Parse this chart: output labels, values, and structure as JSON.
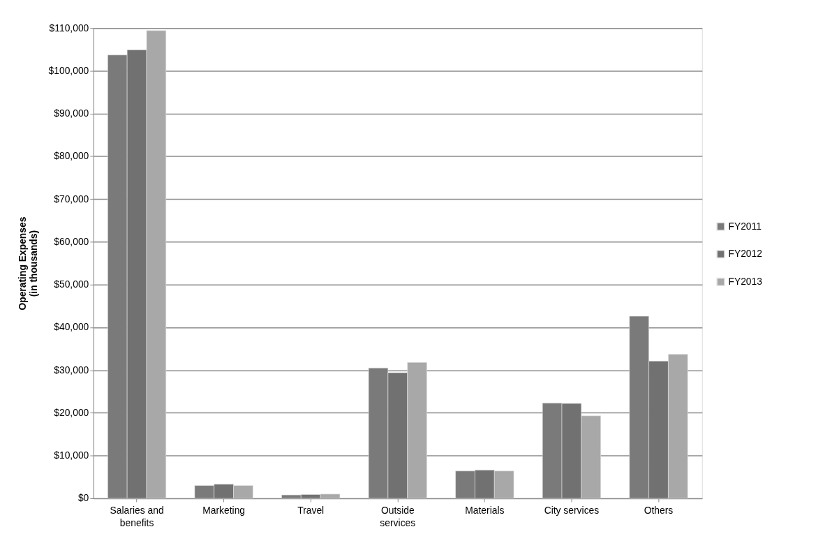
{
  "chart_data": {
    "type": "bar",
    "ylabel": "Operating  Expenses\n(in thousands)",
    "categories": [
      "Salaries and benefits",
      "Marketing",
      "Travel",
      "Outside services",
      "Materials",
      "City services",
      "Others"
    ],
    "series": [
      {
        "name": "FY2011",
        "color": "#7a7a7a",
        "values": [
          103700,
          3000,
          800,
          30500,
          6400,
          22300,
          42600
        ]
      },
      {
        "name": "FY2012",
        "color": "#717171",
        "values": [
          104900,
          3300,
          900,
          29400,
          6600,
          22200,
          32100
        ]
      },
      {
        "name": "FY2013",
        "color": "#a8a8a8",
        "values": [
          109400,
          3000,
          1000,
          31800,
          6400,
          19300,
          33700
        ]
      }
    ],
    "ylim": [
      0,
      110000
    ],
    "yticks": [
      {
        "value": 0,
        "label": "$0"
      },
      {
        "value": 10000,
        "label": "$10,000"
      },
      {
        "value": 20000,
        "label": "$20,000"
      },
      {
        "value": 30000,
        "label": "$30,000"
      },
      {
        "value": 40000,
        "label": "$40,000"
      },
      {
        "value": 50000,
        "label": "$50,000"
      },
      {
        "value": 60000,
        "label": "$60,000"
      },
      {
        "value": 70000,
        "label": "$70,000"
      },
      {
        "value": 80000,
        "label": "$80,000"
      },
      {
        "value": 90000,
        "label": "$90,000"
      },
      {
        "value": 100000,
        "label": "$100,000"
      },
      {
        "value": 110000,
        "label": "$110,000"
      }
    ],
    "grid": "y",
    "legend": "right"
  }
}
